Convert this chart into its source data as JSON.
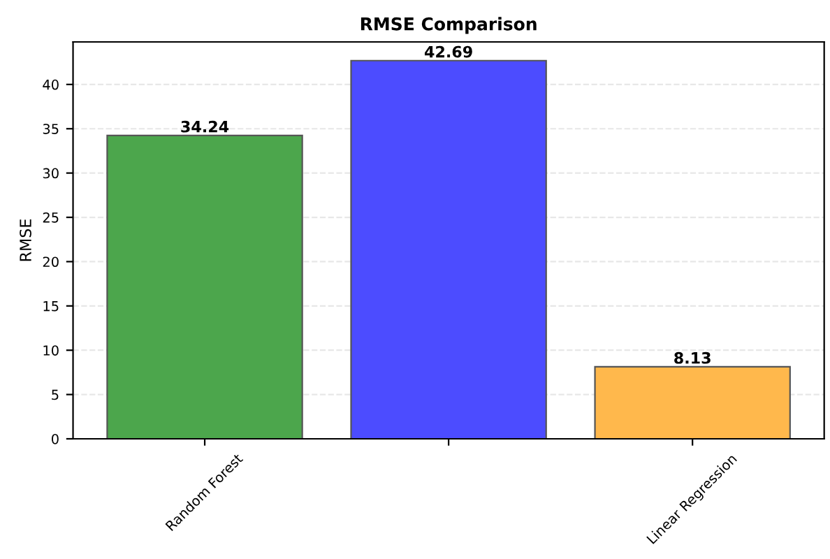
{
  "chart_data": {
    "type": "bar",
    "title": "RMSE Comparison",
    "ylabel": "RMSE",
    "categories": [
      "Random Forest",
      null,
      "Linear Regression"
    ],
    "values": [
      34.24,
      42.69,
      8.13
    ],
    "colors": [
      "#4ca64c",
      "#4c4cff",
      "#ffb84c"
    ],
    "data_labels": true,
    "ylim": [
      0,
      44.8
    ],
    "yticks": [
      0,
      5,
      10,
      15,
      20,
      25,
      30,
      35,
      40
    ],
    "grid": "y"
  }
}
